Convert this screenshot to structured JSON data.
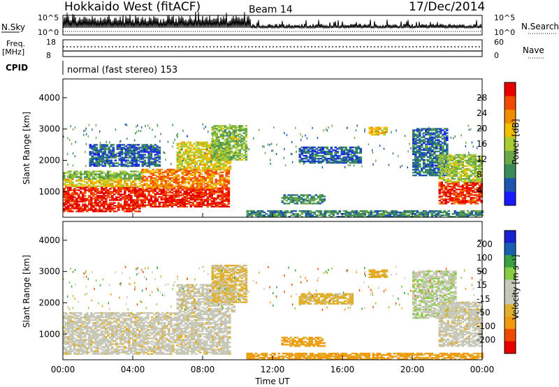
{
  "header": {
    "station": "Hokkaido West (fitACF)",
    "beam": "Beam 14",
    "date": "17/Dec/2014"
  },
  "colors": {
    "power_scale": [
      "#1a1aff",
      "#1f55b0",
      "#3a8a5a",
      "#6aa84a",
      "#aacc33",
      "#f0c000",
      "#f08c00",
      "#f04a00",
      "#e60000"
    ],
    "velocity_scale": [
      "#e60000",
      "#f04a00",
      "#f09a10",
      "#e0b030",
      "#c8c8b8",
      "#c8c8b8",
      "#88cc44",
      "#3aa040",
      "#1a60b0",
      "#1a20d0"
    ],
    "ground_scatter": "#c0c0b0"
  },
  "chart_data": [
    {
      "name": "nsky_nsearch",
      "type": "line",
      "left_label": "N.Sky",
      "right_label": "N.Search",
      "left_ticks": [
        "10^5",
        "10^0"
      ],
      "right_ticks": [
        "10^5",
        "10^0"
      ]
    },
    {
      "name": "frequency_nave",
      "type": "line",
      "left_label_1": "Freq.",
      "left_label_2": "[MHz]",
      "right_label": "Nave",
      "left_ticks": [
        "18",
        "8"
      ],
      "right_ticks": [
        "60",
        "0"
      ]
    },
    {
      "name": "cpid",
      "type": "table",
      "label": "CPID",
      "program": "normal (fast stereo) 153"
    },
    {
      "name": "power",
      "type": "heatmap",
      "ylabel": "Slant Range [km]",
      "y_ticks": [
        1000,
        2000,
        3000,
        4000
      ],
      "ylim": [
        180,
        4600
      ],
      "xlim": [
        0,
        24
      ],
      "colorbar_label": "Power [dB]",
      "colorbar_ticks": [
        4,
        8,
        12,
        16,
        20,
        24,
        28
      ],
      "colorbar_range": [
        0,
        32
      ],
      "regions": [
        {
          "t0": 0,
          "t1": 4.5,
          "r0": 350,
          "r1": 1150,
          "val": 29
        },
        {
          "t0": 0,
          "t1": 4.5,
          "r0": 1150,
          "r1": 1400,
          "val": 19
        },
        {
          "t0": 0,
          "t1": 4.5,
          "r0": 1400,
          "r1": 1650,
          "val": 13
        },
        {
          "t0": 4.5,
          "t1": 9.5,
          "r0": 500,
          "r1": 1100,
          "val": 29
        },
        {
          "t0": 4.5,
          "t1": 9.5,
          "r0": 1100,
          "r1": 1700,
          "val": 24
        },
        {
          "t0": 6.5,
          "t1": 9.5,
          "r0": 1700,
          "r1": 2600,
          "val": 18
        },
        {
          "t0": 8.5,
          "t1": 10.5,
          "r0": 2000,
          "r1": 3100,
          "val": 14
        },
        {
          "t0": 1.5,
          "t1": 5.5,
          "r0": 1800,
          "r1": 2500,
          "val": 6
        },
        {
          "t0": 12.5,
          "t1": 15.0,
          "r0": 600,
          "r1": 900,
          "val": 10
        },
        {
          "t0": 13.5,
          "t1": 17.0,
          "r0": 1900,
          "r1": 2400,
          "val": 6
        },
        {
          "t0": 17.5,
          "t1": 18.5,
          "r0": 2800,
          "r1": 3050,
          "val": 19
        },
        {
          "t0": 20.0,
          "t1": 22.0,
          "r0": 1500,
          "r1": 3000,
          "val": 7
        },
        {
          "t0": 21.5,
          "t1": 24.0,
          "r0": 600,
          "r1": 1300,
          "val": 28
        },
        {
          "t0": 21.5,
          "t1": 24.0,
          "r0": 1300,
          "r1": 2200,
          "val": 15
        },
        {
          "t0": 10.5,
          "t1": 24.0,
          "r0": 180,
          "r1": 400,
          "val": 9
        }
      ]
    },
    {
      "name": "velocity",
      "type": "heatmap",
      "ylabel": "Slant Range [km]",
      "y_ticks": [
        1000,
        2000,
        3000,
        4000
      ],
      "ylim": [
        180,
        4600
      ],
      "xlim": [
        0,
        24
      ],
      "x_ticks": [
        "00:00",
        "04:00",
        "08:00",
        "12:00",
        "16:00",
        "20:00",
        "00:00"
      ],
      "xlabel": "Time UT",
      "colorbar_label": "Velocity [m s⁻¹]",
      "colorbar_ticks": [
        -200,
        -100,
        -50,
        -15,
        15,
        50,
        100,
        200
      ],
      "regions": [
        {
          "t0": 0,
          "t1": 9.5,
          "r0": 350,
          "r1": 1700,
          "val": 0
        },
        {
          "t0": 6.5,
          "t1": 9.8,
          "r0": 1700,
          "r1": 2600,
          "val": 0
        },
        {
          "t0": 8.5,
          "t1": 10.5,
          "r0": 2000,
          "r1": 3200,
          "val": -20
        },
        {
          "t0": 12.5,
          "t1": 15.0,
          "r0": 600,
          "r1": 900,
          "val": -60
        },
        {
          "t0": 13.5,
          "t1": 16.5,
          "r0": 1950,
          "r1": 2300,
          "val": -30
        },
        {
          "t0": 17.5,
          "t1": 18.5,
          "r0": 2800,
          "r1": 3050,
          "val": -40
        },
        {
          "t0": 20.0,
          "t1": 22.5,
          "r0": 1500,
          "r1": 3000,
          "val": 40
        },
        {
          "t0": 21.5,
          "t1": 24.0,
          "r0": 600,
          "r1": 2000,
          "val": 0
        },
        {
          "t0": 10.5,
          "t1": 24.0,
          "r0": 180,
          "r1": 400,
          "val": -60
        }
      ]
    }
  ]
}
